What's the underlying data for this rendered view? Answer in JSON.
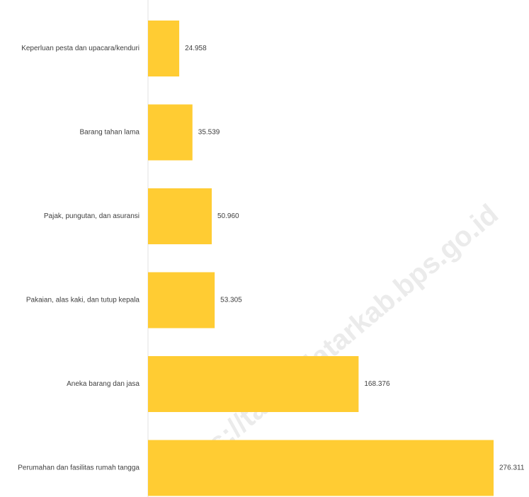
{
  "watermark": "https://tanahdatarkab.bps.go.id",
  "chart_data": {
    "type": "bar",
    "orientation": "horizontal",
    "categories": [
      "Keperluan pesta dan upacara/kenduri",
      "Barang tahan lama",
      "Pajak, pungutan, dan asuransi",
      "Pakaian, alas kaki, dan tutup kepala",
      "Aneka barang dan jasa",
      "Perumahan dan fasilitas rumah tangga"
    ],
    "values": [
      24958,
      35539,
      50960,
      53305,
      168376,
      276311
    ],
    "value_labels": [
      "24.958",
      "35.539",
      "50.960",
      "53.305",
      "168.376",
      "276.311"
    ],
    "bar_color": "#FFCC33",
    "xlim": [
      0,
      276311
    ],
    "grid": false,
    "legend": "none"
  }
}
